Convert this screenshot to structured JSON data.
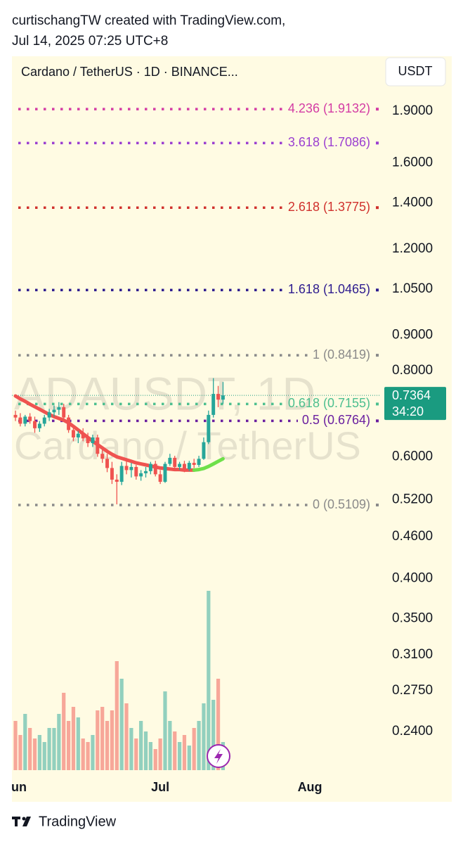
{
  "header": {
    "line1": "curtischangTW created with TradingView.com,",
    "line2": "Jul 14, 2025 07:25 UTC+8"
  },
  "chart_data": {
    "type": "candlestick",
    "title": "Cardano / TetherUS · 1D · BINANCE...",
    "currency_button": "USDT",
    "watermark": [
      "ADAUSDT, 1D",
      "Cardano / TetherUS"
    ],
    "log_scale": true,
    "ylim": [
      0.211,
      2.282
    ],
    "yticks": [
      {
        "value": 1.9,
        "label": "1.9000"
      },
      {
        "value": 1.6,
        "label": "1.6000"
      },
      {
        "value": 1.4,
        "label": "1.4000"
      },
      {
        "value": 1.2,
        "label": "1.2000"
      },
      {
        "value": 1.05,
        "label": "1.0500"
      },
      {
        "value": 0.9,
        "label": "0.9000"
      },
      {
        "value": 0.8,
        "label": "0.8000"
      },
      {
        "value": 0.6,
        "label": "0.6000"
      },
      {
        "value": 0.52,
        "label": "0.5200"
      },
      {
        "value": 0.46,
        "label": "0.4600"
      },
      {
        "value": 0.4,
        "label": "0.4000"
      },
      {
        "value": 0.35,
        "label": "0.3500"
      },
      {
        "value": 0.31,
        "label": "0.3100"
      },
      {
        "value": 0.275,
        "label": "0.2750"
      },
      {
        "value": 0.24,
        "label": "0.2400"
      }
    ],
    "xlim": [
      -0.73,
      75.4
    ],
    "xticks": [
      {
        "value": 0,
        "label": "Jun"
      },
      {
        "value": 30,
        "label": "Jul"
      },
      {
        "value": 61,
        "label": "Aug"
      }
    ],
    "up_color": "#26a69a",
    "down_color": "#ef5350",
    "candles": [
      [
        0.69,
        0.7,
        0.676,
        0.684
      ],
      [
        0.684,
        0.694,
        0.664,
        0.67
      ],
      [
        0.67,
        0.69,
        0.664,
        0.686
      ],
      [
        0.686,
        0.694,
        0.67,
        0.676
      ],
      [
        0.676,
        0.686,
        0.65,
        0.66
      ],
      [
        0.66,
        0.676,
        0.652,
        0.67
      ],
      [
        0.67,
        0.69,
        0.664,
        0.684
      ],
      [
        0.684,
        0.704,
        0.676,
        0.696
      ],
      [
        0.696,
        0.712,
        0.686,
        0.702
      ],
      [
        0.702,
        0.72,
        0.69,
        0.708
      ],
      [
        0.708,
        0.716,
        0.676,
        0.684
      ],
      [
        0.684,
        0.69,
        0.65,
        0.656
      ],
      [
        0.656,
        0.664,
        0.632,
        0.64
      ],
      [
        0.64,
        0.654,
        0.628,
        0.648
      ],
      [
        0.648,
        0.66,
        0.632,
        0.638
      ],
      [
        0.638,
        0.65,
        0.62,
        0.628
      ],
      [
        0.628,
        0.646,
        0.62,
        0.64
      ],
      [
        0.64,
        0.646,
        0.6,
        0.606
      ],
      [
        0.606,
        0.62,
        0.588,
        0.596
      ],
      [
        0.596,
        0.606,
        0.57,
        0.578
      ],
      [
        0.578,
        0.59,
        0.548,
        0.556
      ],
      [
        0.556,
        0.566,
        0.512,
        0.552
      ],
      [
        0.552,
        0.59,
        0.546,
        0.582
      ],
      [
        0.582,
        0.596,
        0.566,
        0.574
      ],
      [
        0.574,
        0.588,
        0.56,
        0.58
      ],
      [
        0.58,
        0.584,
        0.556,
        0.562
      ],
      [
        0.562,
        0.574,
        0.554,
        0.568
      ],
      [
        0.568,
        0.58,
        0.56,
        0.572
      ],
      [
        0.572,
        0.59,
        0.566,
        0.586
      ],
      [
        0.586,
        0.592,
        0.562,
        0.566
      ],
      [
        0.566,
        0.574,
        0.548,
        0.552
      ],
      [
        0.552,
        0.59,
        0.55,
        0.586
      ],
      [
        0.586,
        0.606,
        0.582,
        0.598
      ],
      [
        0.598,
        0.602,
        0.576,
        0.58
      ],
      [
        0.58,
        0.59,
        0.574,
        0.586
      ],
      [
        0.586,
        0.592,
        0.57,
        0.576
      ],
      [
        0.576,
        0.592,
        0.572,
        0.588
      ],
      [
        0.588,
        0.596,
        0.578,
        0.584
      ],
      [
        0.584,
        0.602,
        0.58,
        0.596
      ],
      [
        0.596,
        0.64,
        0.594,
        0.63
      ],
      [
        0.63,
        0.7,
        0.626,
        0.69
      ],
      [
        0.69,
        0.78,
        0.684,
        0.74
      ],
      [
        0.74,
        0.76,
        0.708,
        0.726
      ],
      [
        0.726,
        0.77,
        0.716,
        0.7364
      ]
    ],
    "volume": [
      70,
      50,
      80,
      60,
      45,
      50,
      40,
      60,
      60,
      80,
      110,
      70,
      90,
      75,
      45,
      40,
      50,
      85,
      90,
      70,
      85,
      155,
      130,
      95,
      60,
      45,
      70,
      55,
      40,
      30,
      45,
      112,
      70,
      55,
      40,
      50,
      35,
      60,
      70,
      95,
      255,
      100,
      130,
      40
    ],
    "ma": {
      "values": [
        0.735,
        0.728,
        0.722,
        0.715,
        0.709,
        0.703,
        0.697,
        0.691,
        0.686,
        0.682,
        0.678,
        0.672,
        0.664,
        0.656,
        0.648,
        0.64,
        0.632,
        0.625,
        0.618,
        0.611,
        0.605,
        0.6,
        0.597,
        0.594,
        0.591,
        0.588,
        0.586,
        0.584,
        0.582,
        0.58,
        0.578,
        0.577,
        0.576,
        0.575,
        0.575,
        0.574,
        0.574,
        0.574,
        0.575,
        0.577,
        0.581,
        0.586,
        0.591,
        0.596
      ],
      "down_color": "#ef5350",
      "up_color": "#6ee04a"
    },
    "fib_levels": [
      {
        "label": "4.236 (1.9132)",
        "price": 1.9132,
        "color": "#d43ca4"
      },
      {
        "label": "3.618 (1.7086)",
        "price": 1.7086,
        "color": "#9b3fd1"
      },
      {
        "label": "2.618 (1.3775)",
        "price": 1.3775,
        "color": "#d0312d"
      },
      {
        "label": "1.618 (1.0465)",
        "price": 1.0465,
        "color": "#2e1c8f"
      },
      {
        "label": "1 (0.8419)",
        "price": 0.8419,
        "color": "#8a8a8a"
      },
      {
        "label": "0.618 (0.7155)",
        "price": 0.7155,
        "color": "#4cbf8f"
      },
      {
        "label": "0.5 (0.6764)",
        "price": 0.6764,
        "color": "#6a1fa0"
      },
      {
        "label": "0 (0.5109)",
        "price": 0.5109,
        "color": "#8a8a8a"
      }
    ],
    "last_price": 0.7364,
    "countdown": "34:20",
    "price_box_color": "#1a9b80"
  },
  "footer": {
    "brand": "TradingView"
  }
}
